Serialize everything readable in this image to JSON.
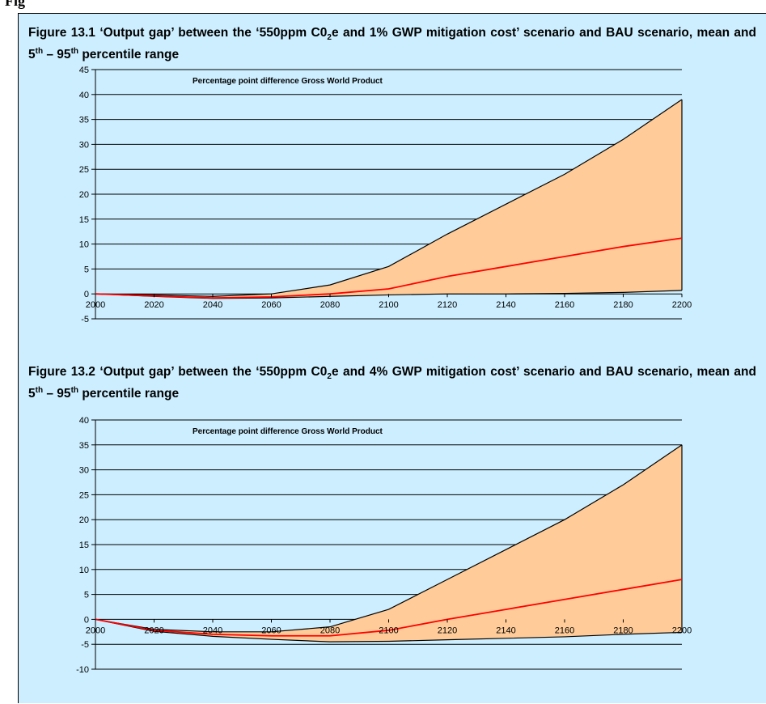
{
  "page_header": {
    "clipped_text": "Fig"
  },
  "chart_data": [
    {
      "type": "area",
      "title_parts": {
        "a": "Figure 13.1 ‘Output gap’ between the ‘550ppm C0",
        "sub": "2",
        "b": "e and 1% GWP mitigation cost’ scenario and BAU scenario, mean and 5",
        "sup1": "th",
        "c": " – 95",
        "sup2": "th",
        "d": " percentile range"
      },
      "inner_label": "Percentage point difference Gross World Product",
      "x": [
        2000,
        2020,
        2040,
        2060,
        2080,
        2100,
        2120,
        2140,
        2160,
        2180,
        2200
      ],
      "xlim": [
        2000,
        2200
      ],
      "ylim": [
        -5,
        45
      ],
      "yticks": [
        -5,
        0,
        5,
        10,
        15,
        20,
        25,
        30,
        35,
        40,
        45
      ],
      "grid": "horizontal",
      "series": [
        {
          "name": "",
          "role": "upper",
          "values": [
            0,
            -0.2,
            -0.5,
            0,
            1.8,
            5.5,
            12,
            18,
            24,
            31,
            39
          ],
          "color": "#000000"
        },
        {
          "name": "",
          "role": "mean",
          "values": [
            0,
            -0.4,
            -0.8,
            -0.6,
            0,
            1,
            3.5,
            5.5,
            7.5,
            9.5,
            11.2
          ],
          "color": "#ff0000"
        },
        {
          "name": "",
          "role": "lower",
          "values": [
            0,
            -0.5,
            -0.9,
            -0.8,
            -0.5,
            -0.2,
            0,
            0,
            0.1,
            0.3,
            0.7
          ],
          "color": "#000000"
        }
      ],
      "band_color": "#ffcc99"
    },
    {
      "type": "area",
      "title_parts": {
        "a": "Figure 13.2 ‘Output gap’ between the ‘550ppm C0",
        "sub": "2",
        "b": "e and 4% GWP mitigation cost’ scenario and BAU scenario, mean and 5",
        "sup1": "th",
        "c": " – 95",
        "sup2": "th",
        "d": " percentile range"
      },
      "inner_label": "Percentage point difference Gross World Product",
      "x": [
        2000,
        2020,
        2040,
        2060,
        2080,
        2100,
        2120,
        2140,
        2160,
        2180,
        2200
      ],
      "xlim": [
        2000,
        2200
      ],
      "ylim": [
        -10,
        40
      ],
      "yticks": [
        -10,
        -5,
        0,
        5,
        10,
        15,
        20,
        25,
        30,
        35,
        40
      ],
      "grid": "horizontal",
      "series": [
        {
          "name": "",
          "role": "upper",
          "values": [
            0,
            -2,
            -2.5,
            -2.5,
            -1.5,
            2,
            8,
            14,
            20,
            27,
            35
          ],
          "color": "#000000"
        },
        {
          "name": "",
          "role": "mean",
          "values": [
            0,
            -2.2,
            -3,
            -3.3,
            -3.3,
            -2.2,
            0,
            2,
            4,
            6,
            8
          ],
          "color": "#ff0000"
        },
        {
          "name": "",
          "role": "lower",
          "values": [
            0,
            -2.4,
            -3.4,
            -4,
            -4.5,
            -4.4,
            -4.1,
            -3.8,
            -3.5,
            -3,
            -2.6
          ],
          "color": "#000000"
        }
      ],
      "band_color": "#ffcc99"
    }
  ]
}
